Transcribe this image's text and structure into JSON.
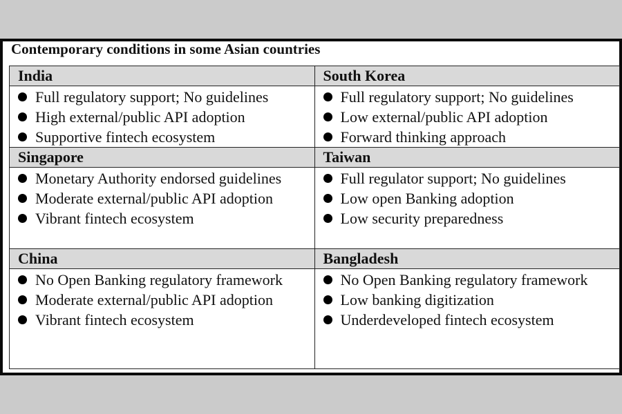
{
  "title": "Contemporary conditions in some Asian countries",
  "countries": [
    {
      "name": "India",
      "items": [
        "Full regulatory support; No guidelines",
        "High external/public API adoption",
        "Supportive fintech ecosystem"
      ]
    },
    {
      "name": "South Korea",
      "items": [
        "Full regulatory support; No guidelines",
        "Low external/public API adoption",
        "Forward thinking approach"
      ]
    },
    {
      "name": "Singapore",
      "items": [
        "Monetary Authority endorsed guidelines",
        "Moderate external/public API adoption",
        "Vibrant fintech ecosystem"
      ]
    },
    {
      "name": "Taiwan",
      "items": [
        "Full regulator support; No guidelines",
        "Low open Banking adoption",
        "Low security preparedness"
      ]
    },
    {
      "name": "China",
      "items": [
        "No Open Banking regulatory framework",
        "Moderate external/public API adoption",
        "Vibrant fintech ecosystem"
      ]
    },
    {
      "name": "Bangladesh",
      "items": [
        "No Open Banking regulatory framework",
        "Low banking digitization",
        "Underdeveloped fintech ecosystem"
      ]
    }
  ]
}
